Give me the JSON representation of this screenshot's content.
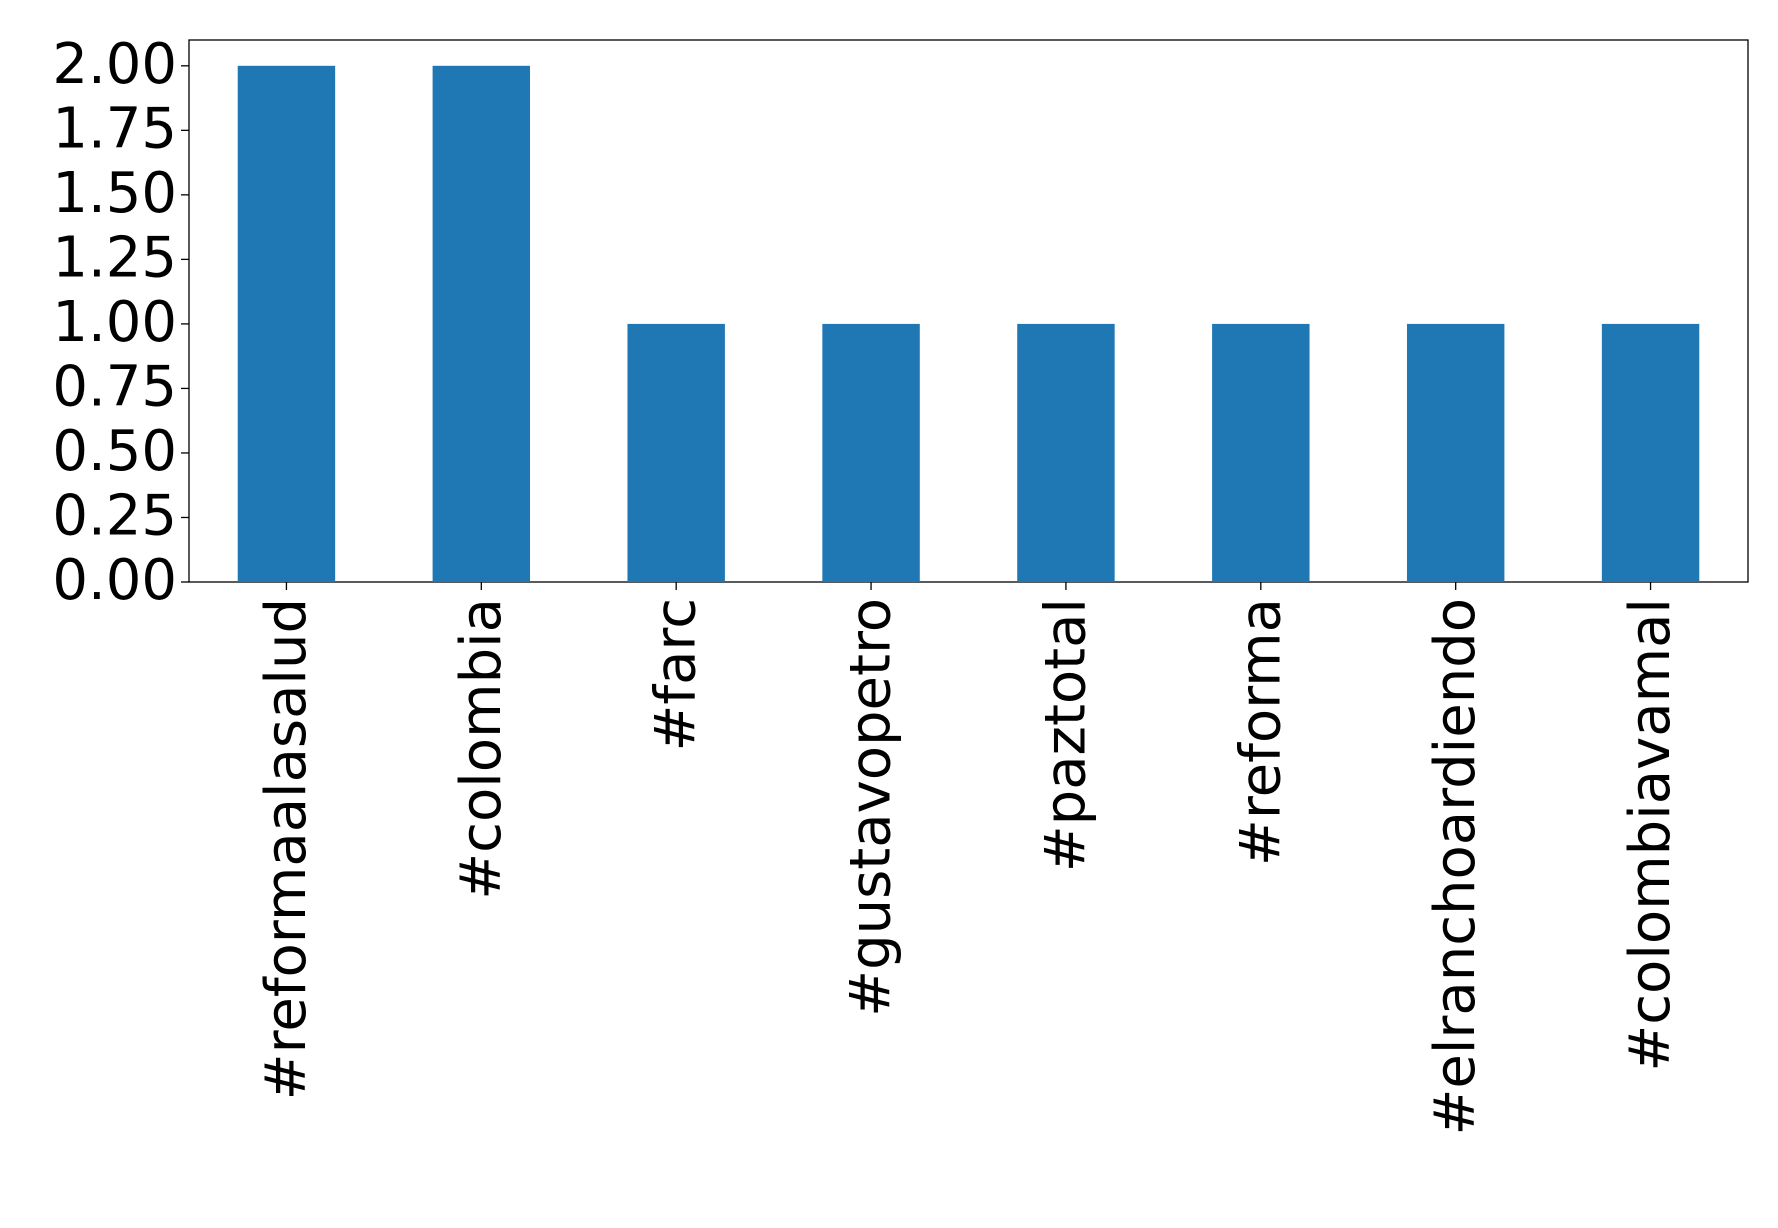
{
  "chart_data": {
    "type": "bar",
    "categories": [
      "#reformaalasalud",
      "#colombia",
      "#farc",
      "#gustavopetro",
      "#paztotal",
      "#reforma",
      "#elranchoardiendo",
      "#colombiavamal"
    ],
    "values": [
      2,
      2,
      1,
      1,
      1,
      1,
      1,
      1
    ],
    "color": "#1f77b4",
    "ylim": [
      0,
      2.1
    ],
    "yticks": [
      {
        "value": 0,
        "label": "0.00"
      },
      {
        "value": 0.25,
        "label": "0.25"
      },
      {
        "value": 0.5,
        "label": "0.50"
      },
      {
        "value": 0.75,
        "label": "0.75"
      },
      {
        "value": 1,
        "label": "1.00"
      },
      {
        "value": 1.25,
        "label": "1.25"
      },
      {
        "value": 1.5,
        "label": "1.50"
      },
      {
        "value": 1.75,
        "label": "1.75"
      },
      {
        "value": 2,
        "label": "2.00"
      }
    ],
    "grid": false
  }
}
